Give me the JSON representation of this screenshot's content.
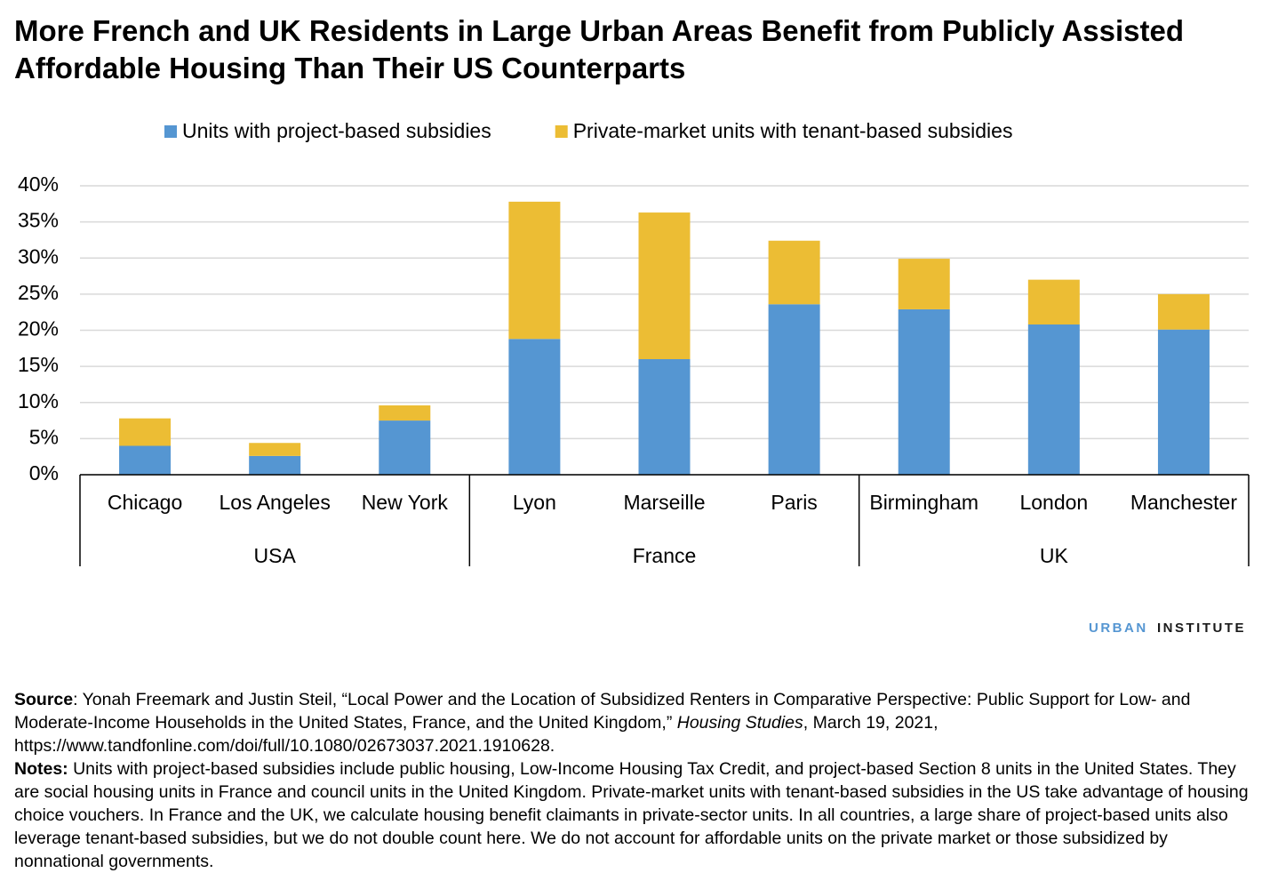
{
  "chart_data": {
    "type": "stacked_bar",
    "title": "More French and UK Residents in Large Urban Areas Benefit from Publicly Assisted Affordable Housing Than Their US Counterparts",
    "groups": [
      {
        "name": "USA",
        "categories": [
          "Chicago",
          "Los Angeles",
          "New York"
        ]
      },
      {
        "name": "France",
        "categories": [
          "Lyon",
          "Marseille",
          "Paris"
        ]
      },
      {
        "name": "UK",
        "categories": [
          "Birmingham",
          "London",
          "Manchester"
        ]
      }
    ],
    "series": [
      {
        "name": "Units with project-based subsidies",
        "color": "#5596d2",
        "values": [
          4.0,
          2.6,
          7.5,
          18.8,
          16.0,
          23.6,
          22.9,
          20.8,
          20.1
        ]
      },
      {
        "name": "Private-market units with tenant-based subsidies",
        "color": "#ecbd34",
        "values": [
          3.8,
          1.8,
          2.1,
          19.0,
          20.3,
          8.8,
          7.0,
          6.2,
          4.9
        ]
      }
    ],
    "ylim": [
      0,
      40
    ],
    "yticks": [
      {
        "value": 0,
        "label": "0%"
      },
      {
        "value": 5,
        "label": "5%"
      },
      {
        "value": 10,
        "label": "10%"
      },
      {
        "value": 15,
        "label": "15%"
      },
      {
        "value": 20,
        "label": "20%"
      },
      {
        "value": 25,
        "label": "25%"
      },
      {
        "value": 30,
        "label": "30%"
      },
      {
        "value": 35,
        "label": "35%"
      },
      {
        "value": 40,
        "label": "40%"
      }
    ],
    "grid": true,
    "legend_position": "top"
  },
  "branding": {
    "first": "URBAN",
    "second": "INSTITUTE"
  },
  "footer": {
    "source_label": "Source",
    "source_text": ": Yonah Freemark and Justin Steil, “Local Power and the Location of Subsidized Renters in Comparative Perspective: Public Support for Low- and Moderate-Income Households in the United States, France, and the United Kingdom,” ",
    "source_journal": "Housing Studies",
    "source_tail": ", March 19, 2021, https://www.tandfonline.com/doi/full/10.1080/02673037.2021.1910628.",
    "notes_label": "Notes:",
    "notes_text": " Units with project-based subsidies include public housing, Low-Income Housing Tax Credit, and project-based Section 8 units in the United States. They are social housing units in France and council units in the United Kingdom. Private-market units with tenant-based subsidies in the US take advantage of housing choice vouchers. In France and the UK, we calculate housing benefit claimants in private-sector units. In all countries, a large share of project-based units also leverage tenant-based subsidies, but we do not double count here. We do not account for affordable units on the private market or those subsidized by nonnational governments."
  }
}
